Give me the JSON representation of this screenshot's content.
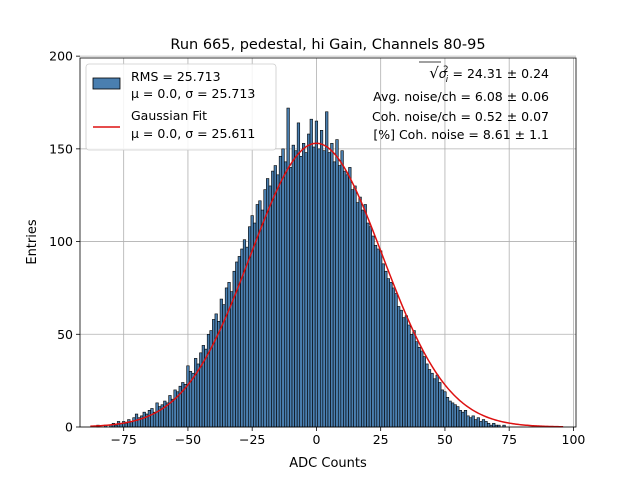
{
  "chart_data": {
    "type": "bar",
    "title": "Run 665, pedestal, hi Gain, Channels 80-95",
    "xlabel": "ADC Counts",
    "ylabel": "Entries",
    "xlim": [
      -92,
      101
    ],
    "ylim": [
      0,
      199
    ],
    "xticks": [
      -75,
      -50,
      -25,
      0,
      25,
      50,
      75,
      100
    ],
    "yticks": [
      0,
      50,
      100,
      150,
      200
    ],
    "grid": true,
    "legend_position": "top-left",
    "bin_width": 1,
    "series": [
      {
        "name": "RMS = 25.713",
        "name_line2": "μ = 0.0, σ = 25.713",
        "kind": "histogram",
        "color": "#4a7fb0",
        "edge_color": "#000000",
        "bins_x": [
          -85,
          -84,
          -83,
          -82,
          -81,
          -80,
          -79,
          -78,
          -77,
          -76,
          -75,
          -74,
          -73,
          -72,
          -71,
          -70,
          -69,
          -68,
          -67,
          -66,
          -65,
          -64,
          -63,
          -62,
          -61,
          -60,
          -59,
          -58,
          -57,
          -56,
          -55,
          -54,
          -53,
          -52,
          -51,
          -50,
          -49,
          -48,
          -47,
          -46,
          -45,
          -44,
          -43,
          -42,
          -41,
          -40,
          -39,
          -38,
          -37,
          -36,
          -35,
          -34,
          -33,
          -32,
          -31,
          -30,
          -29,
          -28,
          -27,
          -26,
          -25,
          -24,
          -23,
          -22,
          -21,
          -20,
          -19,
          -18,
          -17,
          -16,
          -15,
          -14,
          -13,
          -12,
          -11,
          -10,
          -9,
          -8,
          -7,
          -6,
          -5,
          -4,
          -3,
          -2,
          -1,
          0,
          1,
          2,
          3,
          4,
          5,
          6,
          7,
          8,
          9,
          10,
          11,
          12,
          13,
          14,
          15,
          16,
          17,
          18,
          19,
          20,
          21,
          22,
          23,
          24,
          25,
          26,
          27,
          28,
          29,
          30,
          31,
          32,
          33,
          34,
          35,
          36,
          37,
          38,
          39,
          40,
          41,
          42,
          43,
          44,
          45,
          46,
          47,
          48,
          49,
          50,
          51,
          52,
          53,
          54,
          55,
          56,
          57,
          58,
          59,
          60,
          61,
          62,
          63,
          64,
          65,
          66,
          67,
          68,
          69,
          70,
          71,
          72,
          73,
          74,
          75,
          76,
          77,
          78,
          79,
          80,
          81,
          82,
          83,
          84,
          85
        ],
        "counts": [
          1,
          0,
          0,
          1,
          0,
          1,
          2,
          1,
          3,
          2,
          3,
          2,
          4,
          3,
          5,
          7,
          5,
          6,
          8,
          7,
          9,
          10,
          8,
          13,
          11,
          12,
          14,
          13,
          17,
          15,
          20,
          19,
          22,
          24,
          23,
          33,
          30,
          29,
          37,
          34,
          40,
          44,
          42,
          50,
          52,
          58,
          61,
          57,
          69,
          66,
          75,
          78,
          73,
          84,
          89,
          92,
          96,
          101,
          97,
          108,
          114,
          110,
          120,
          122,
          117,
          128,
          134,
          130,
          138,
          141,
          136,
          146,
          150,
          143,
          172,
          140,
          152,
          149,
          164,
          146,
          153,
          148,
          158,
          166,
          151,
          165,
          150,
          160,
          149,
          170,
          148,
          153,
          143,
          155,
          141,
          149,
          138,
          136,
          140,
          128,
          130,
          121,
          124,
          117,
          120,
          110,
          108,
          103,
          98,
          96,
          95,
          88,
          84,
          80,
          78,
          75,
          72,
          65,
          63,
          59,
          60,
          55,
          50,
          52,
          46,
          43,
          41,
          38,
          34,
          31,
          29,
          26,
          28,
          24,
          20,
          19,
          16,
          14,
          13,
          12,
          11,
          9,
          8,
          9,
          6,
          5,
          6,
          4,
          5,
          3,
          4,
          3,
          2,
          1,
          2,
          1,
          1,
          0,
          1,
          0,
          0
        ]
      },
      {
        "name": "Gaussian Fit",
        "name_line2": "μ = 0.0, σ = 25.611",
        "kind": "line",
        "color": "#dd1111",
        "mu": 0.0,
        "sigma": 25.611,
        "amplitude": 153,
        "x_range": [
          -88,
          96
        ]
      }
    ],
    "annotations": [
      {
        "sqrt": "√",
        "symbol": "σ",
        "sub": "i",
        "sup": "2",
        "text": " = 24.31 ± 0.24"
      },
      {
        "text": "Avg. noise/ch = 6.08 ± 0.06"
      },
      {
        "text": "Coh. noise/ch = 0.52 ± 0.07"
      },
      {
        "text": "[%] Coh. noise = 8.61 ± 1.1"
      }
    ]
  }
}
